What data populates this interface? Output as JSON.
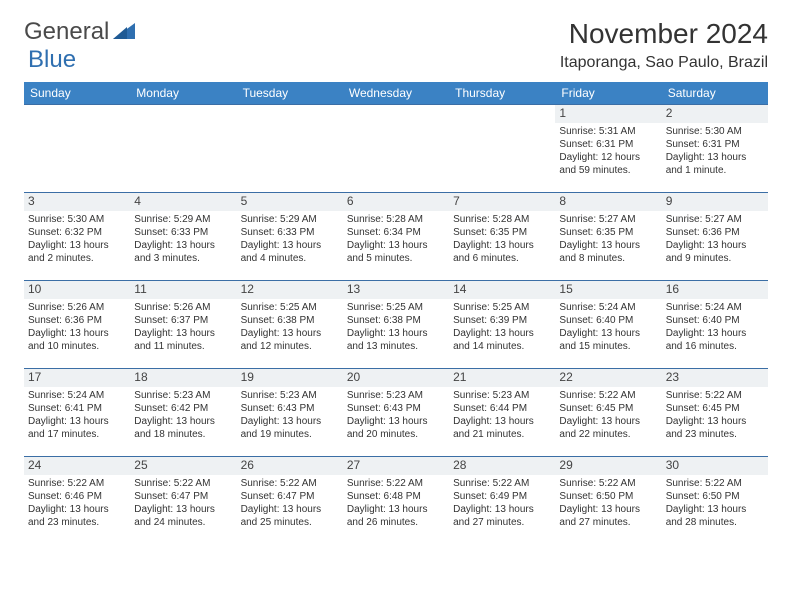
{
  "logo": {
    "text1": "General",
    "text2": "Blue",
    "color1": "#5a5a5a",
    "color2": "#2f6fb0"
  },
  "title": "November 2024",
  "location": "Itaporanga, Sao Paulo, Brazil",
  "colors": {
    "header_bg": "#3b82c4",
    "header_fg": "#ffffff",
    "border": "#3b6ea5",
    "daybg": "#eef1f3"
  },
  "weekdays": [
    "Sunday",
    "Monday",
    "Tuesday",
    "Wednesday",
    "Thursday",
    "Friday",
    "Saturday"
  ],
  "weeks": [
    [
      {
        "n": "",
        "sr": "",
        "ss": "",
        "dl1": "",
        "dl2": ""
      },
      {
        "n": "",
        "sr": "",
        "ss": "",
        "dl1": "",
        "dl2": ""
      },
      {
        "n": "",
        "sr": "",
        "ss": "",
        "dl1": "",
        "dl2": ""
      },
      {
        "n": "",
        "sr": "",
        "ss": "",
        "dl1": "",
        "dl2": ""
      },
      {
        "n": "",
        "sr": "",
        "ss": "",
        "dl1": "",
        "dl2": ""
      },
      {
        "n": "1",
        "sr": "Sunrise: 5:31 AM",
        "ss": "Sunset: 6:31 PM",
        "dl1": "Daylight: 12 hours",
        "dl2": "and 59 minutes."
      },
      {
        "n": "2",
        "sr": "Sunrise: 5:30 AM",
        "ss": "Sunset: 6:31 PM",
        "dl1": "Daylight: 13 hours",
        "dl2": "and 1 minute."
      }
    ],
    [
      {
        "n": "3",
        "sr": "Sunrise: 5:30 AM",
        "ss": "Sunset: 6:32 PM",
        "dl1": "Daylight: 13 hours",
        "dl2": "and 2 minutes."
      },
      {
        "n": "4",
        "sr": "Sunrise: 5:29 AM",
        "ss": "Sunset: 6:33 PM",
        "dl1": "Daylight: 13 hours",
        "dl2": "and 3 minutes."
      },
      {
        "n": "5",
        "sr": "Sunrise: 5:29 AM",
        "ss": "Sunset: 6:33 PM",
        "dl1": "Daylight: 13 hours",
        "dl2": "and 4 minutes."
      },
      {
        "n": "6",
        "sr": "Sunrise: 5:28 AM",
        "ss": "Sunset: 6:34 PM",
        "dl1": "Daylight: 13 hours",
        "dl2": "and 5 minutes."
      },
      {
        "n": "7",
        "sr": "Sunrise: 5:28 AM",
        "ss": "Sunset: 6:35 PM",
        "dl1": "Daylight: 13 hours",
        "dl2": "and 6 minutes."
      },
      {
        "n": "8",
        "sr": "Sunrise: 5:27 AM",
        "ss": "Sunset: 6:35 PM",
        "dl1": "Daylight: 13 hours",
        "dl2": "and 8 minutes."
      },
      {
        "n": "9",
        "sr": "Sunrise: 5:27 AM",
        "ss": "Sunset: 6:36 PM",
        "dl1": "Daylight: 13 hours",
        "dl2": "and 9 minutes."
      }
    ],
    [
      {
        "n": "10",
        "sr": "Sunrise: 5:26 AM",
        "ss": "Sunset: 6:36 PM",
        "dl1": "Daylight: 13 hours",
        "dl2": "and 10 minutes."
      },
      {
        "n": "11",
        "sr": "Sunrise: 5:26 AM",
        "ss": "Sunset: 6:37 PM",
        "dl1": "Daylight: 13 hours",
        "dl2": "and 11 minutes."
      },
      {
        "n": "12",
        "sr": "Sunrise: 5:25 AM",
        "ss": "Sunset: 6:38 PM",
        "dl1": "Daylight: 13 hours",
        "dl2": "and 12 minutes."
      },
      {
        "n": "13",
        "sr": "Sunrise: 5:25 AM",
        "ss": "Sunset: 6:38 PM",
        "dl1": "Daylight: 13 hours",
        "dl2": "and 13 minutes."
      },
      {
        "n": "14",
        "sr": "Sunrise: 5:25 AM",
        "ss": "Sunset: 6:39 PM",
        "dl1": "Daylight: 13 hours",
        "dl2": "and 14 minutes."
      },
      {
        "n": "15",
        "sr": "Sunrise: 5:24 AM",
        "ss": "Sunset: 6:40 PM",
        "dl1": "Daylight: 13 hours",
        "dl2": "and 15 minutes."
      },
      {
        "n": "16",
        "sr": "Sunrise: 5:24 AM",
        "ss": "Sunset: 6:40 PM",
        "dl1": "Daylight: 13 hours",
        "dl2": "and 16 minutes."
      }
    ],
    [
      {
        "n": "17",
        "sr": "Sunrise: 5:24 AM",
        "ss": "Sunset: 6:41 PM",
        "dl1": "Daylight: 13 hours",
        "dl2": "and 17 minutes."
      },
      {
        "n": "18",
        "sr": "Sunrise: 5:23 AM",
        "ss": "Sunset: 6:42 PM",
        "dl1": "Daylight: 13 hours",
        "dl2": "and 18 minutes."
      },
      {
        "n": "19",
        "sr": "Sunrise: 5:23 AM",
        "ss": "Sunset: 6:43 PM",
        "dl1": "Daylight: 13 hours",
        "dl2": "and 19 minutes."
      },
      {
        "n": "20",
        "sr": "Sunrise: 5:23 AM",
        "ss": "Sunset: 6:43 PM",
        "dl1": "Daylight: 13 hours",
        "dl2": "and 20 minutes."
      },
      {
        "n": "21",
        "sr": "Sunrise: 5:23 AM",
        "ss": "Sunset: 6:44 PM",
        "dl1": "Daylight: 13 hours",
        "dl2": "and 21 minutes."
      },
      {
        "n": "22",
        "sr": "Sunrise: 5:22 AM",
        "ss": "Sunset: 6:45 PM",
        "dl1": "Daylight: 13 hours",
        "dl2": "and 22 minutes."
      },
      {
        "n": "23",
        "sr": "Sunrise: 5:22 AM",
        "ss": "Sunset: 6:45 PM",
        "dl1": "Daylight: 13 hours",
        "dl2": "and 23 minutes."
      }
    ],
    [
      {
        "n": "24",
        "sr": "Sunrise: 5:22 AM",
        "ss": "Sunset: 6:46 PM",
        "dl1": "Daylight: 13 hours",
        "dl2": "and 23 minutes."
      },
      {
        "n": "25",
        "sr": "Sunrise: 5:22 AM",
        "ss": "Sunset: 6:47 PM",
        "dl1": "Daylight: 13 hours",
        "dl2": "and 24 minutes."
      },
      {
        "n": "26",
        "sr": "Sunrise: 5:22 AM",
        "ss": "Sunset: 6:47 PM",
        "dl1": "Daylight: 13 hours",
        "dl2": "and 25 minutes."
      },
      {
        "n": "27",
        "sr": "Sunrise: 5:22 AM",
        "ss": "Sunset: 6:48 PM",
        "dl1": "Daylight: 13 hours",
        "dl2": "and 26 minutes."
      },
      {
        "n": "28",
        "sr": "Sunrise: 5:22 AM",
        "ss": "Sunset: 6:49 PM",
        "dl1": "Daylight: 13 hours",
        "dl2": "and 27 minutes."
      },
      {
        "n": "29",
        "sr": "Sunrise: 5:22 AM",
        "ss": "Sunset: 6:50 PM",
        "dl1": "Daylight: 13 hours",
        "dl2": "and 27 minutes."
      },
      {
        "n": "30",
        "sr": "Sunrise: 5:22 AM",
        "ss": "Sunset: 6:50 PM",
        "dl1": "Daylight: 13 hours",
        "dl2": "and 28 minutes."
      }
    ]
  ]
}
